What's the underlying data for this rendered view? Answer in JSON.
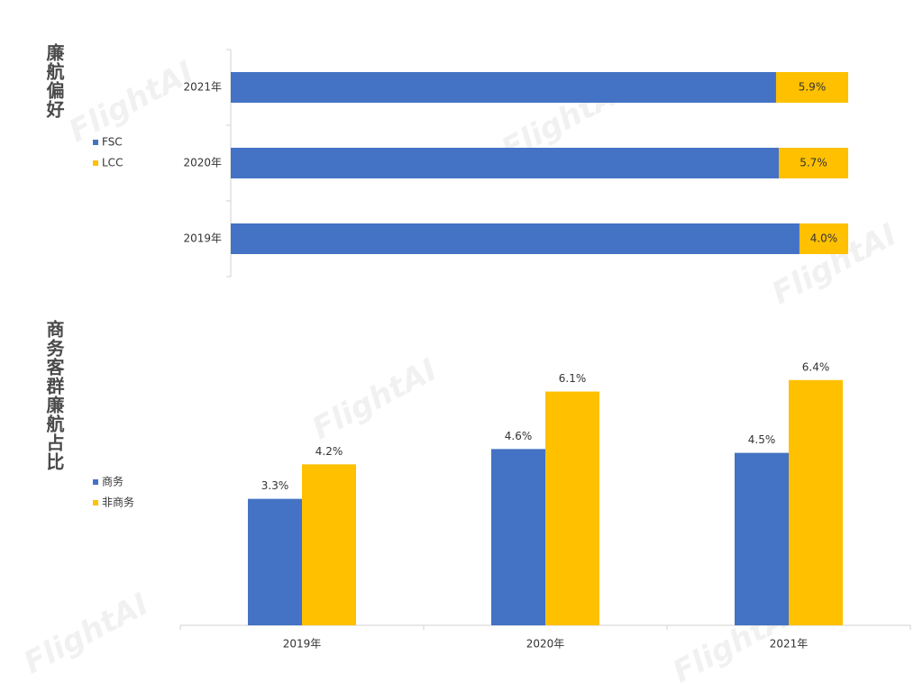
{
  "watermark": "FlightAI",
  "chart_data": [
    {
      "type": "bar",
      "orientation": "horizontal",
      "stacked": true,
      "title": "廉航偏好",
      "categories": [
        "2021年",
        "2020年",
        "2019年"
      ],
      "series": [
        {
          "name": "FSC",
          "color": "#4472c4",
          "values": [
            44.6,
            45.0,
            46.7
          ]
        },
        {
          "name": "LCC",
          "color": "#ffc000",
          "values": [
            5.9,
            5.7,
            4.0
          ],
          "value_labels": [
            "5.9%",
            "5.7%",
            "4.0%"
          ]
        }
      ],
      "legend": "left"
    },
    {
      "type": "bar",
      "title": "商务客群廉航占比",
      "categories": [
        "2019年",
        "2020年",
        "2021年"
      ],
      "series": [
        {
          "name": "商务",
          "color": "#4472c4",
          "values": [
            3.3,
            4.6,
            4.5
          ],
          "value_labels": [
            "3.3%",
            "4.6%",
            "4.5%"
          ]
        },
        {
          "name": "非商务",
          "color": "#ffc000",
          "values": [
            4.2,
            6.1,
            6.4
          ],
          "value_labels": [
            "4.2%",
            "6.1%",
            "6.4%"
          ]
        }
      ],
      "ylim": [
        0,
        7.5
      ],
      "legend": "left"
    }
  ]
}
